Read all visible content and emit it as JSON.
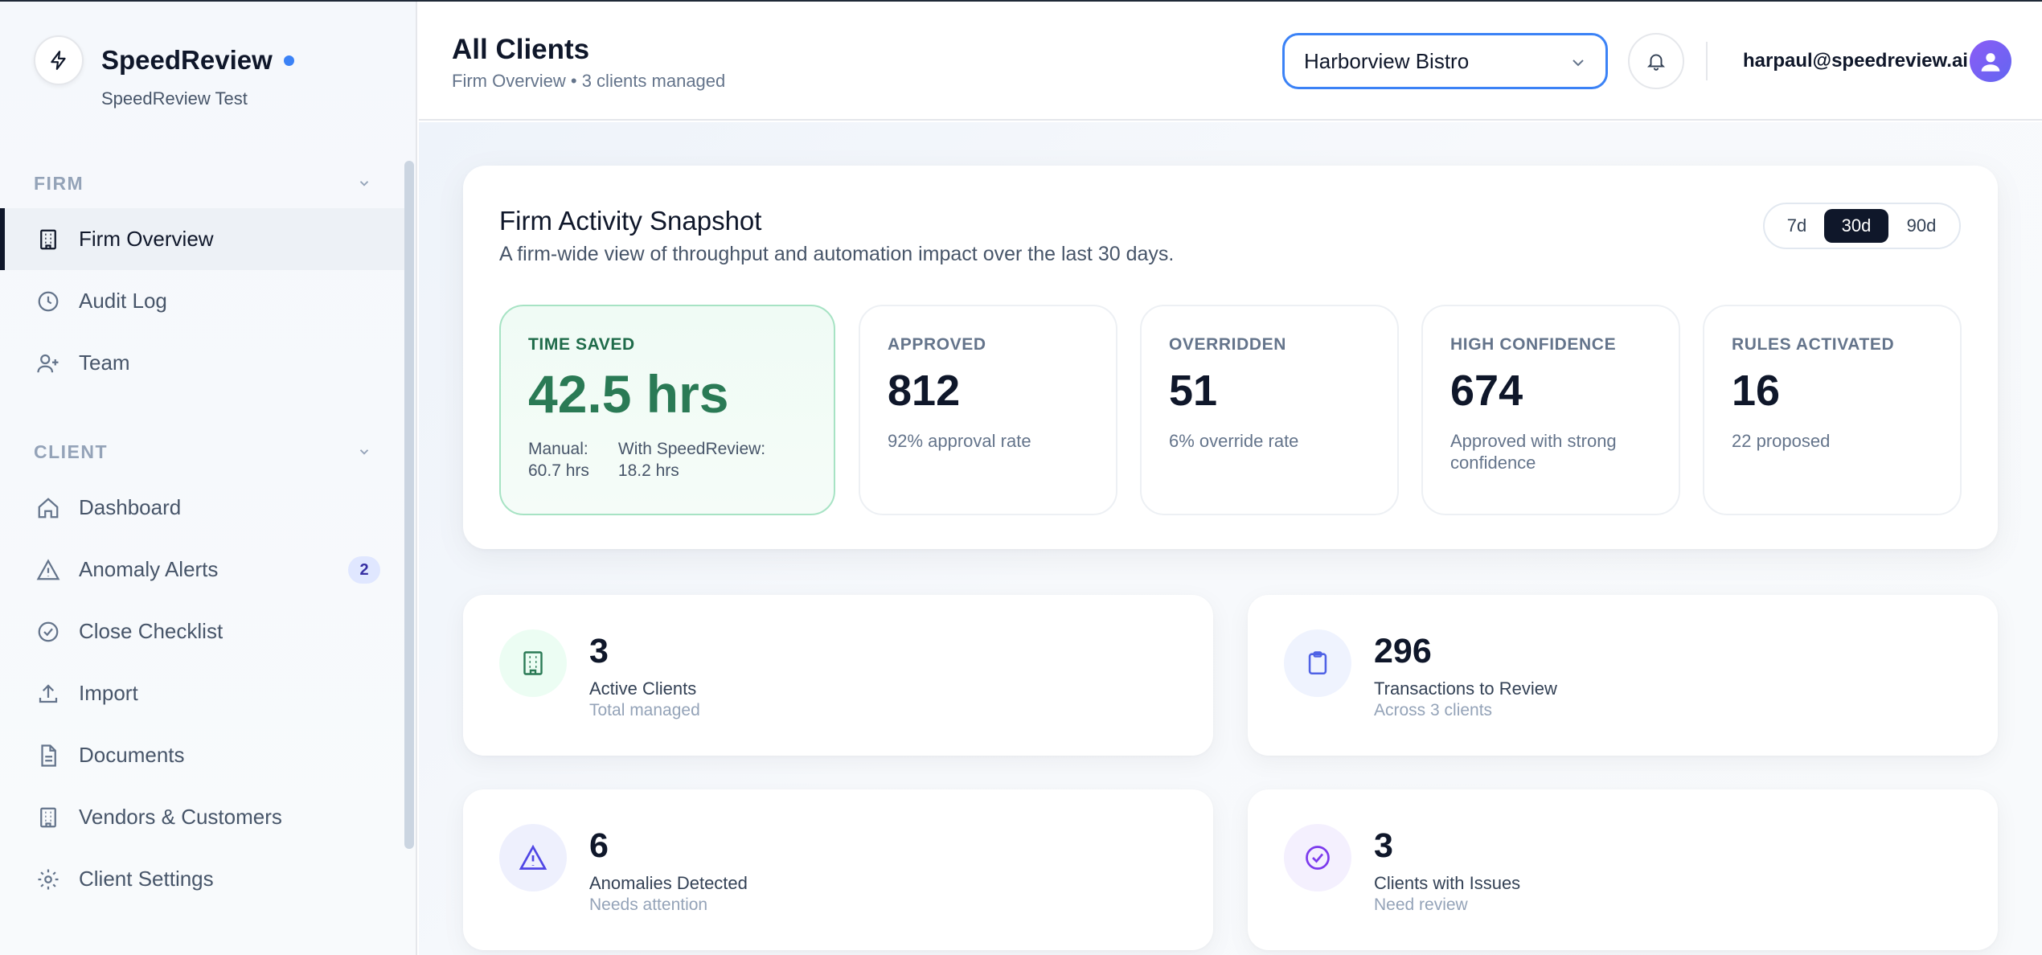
{
  "brand": {
    "name": "SpeedReview",
    "subtitle": "SpeedReview Test"
  },
  "sidebar": {
    "sections": [
      {
        "label": "FIRM",
        "items": [
          {
            "label": "Firm Overview",
            "icon": "building-icon",
            "active": true
          },
          {
            "label": "Audit Log",
            "icon": "clock-icon"
          },
          {
            "label": "Team",
            "icon": "user-plus-icon"
          }
        ]
      },
      {
        "label": "CLIENT",
        "items": [
          {
            "label": "Dashboard",
            "icon": "home-icon"
          },
          {
            "label": "Anomaly Alerts",
            "icon": "alert-triangle-icon",
            "badge": "2"
          },
          {
            "label": "Close Checklist",
            "icon": "check-circle-icon"
          },
          {
            "label": "Import",
            "icon": "upload-icon"
          },
          {
            "label": "Documents",
            "icon": "file-icon"
          },
          {
            "label": "Vendors & Customers",
            "icon": "building-icon"
          },
          {
            "label": "Client Settings",
            "icon": "gear-icon"
          }
        ]
      }
    ]
  },
  "header": {
    "title": "All Clients",
    "subtitle": "Firm Overview • 3 clients managed",
    "client_select": {
      "value": "Harborview Bistro"
    },
    "user_email": "harpaul@speedreview.ai"
  },
  "snapshot": {
    "title": "Firm Activity Snapshot",
    "subtitle": "A firm-wide view of throughput and automation impact over the last 30 days.",
    "ranges": [
      "7d",
      "30d",
      "90d"
    ],
    "active_range": "30d",
    "time_saved": {
      "label": "TIME SAVED",
      "value": "42.5 hrs",
      "manual_label": "Manual:",
      "manual_value": "60.7 hrs",
      "with_label": "With SpeedReview:",
      "with_value": "18.2 hrs"
    },
    "metrics": [
      {
        "label": "APPROVED",
        "value": "812",
        "note": "92% approval rate"
      },
      {
        "label": "OVERRIDDEN",
        "value": "51",
        "note": "6% override rate"
      },
      {
        "label": "HIGH CONFIDENCE",
        "value": "674",
        "note": "Approved with strong confidence"
      },
      {
        "label": "RULES ACTIVATED",
        "value": "16",
        "note": "22 proposed"
      }
    ]
  },
  "stats": [
    {
      "value": "3",
      "label": "Active Clients",
      "sub": "Total managed",
      "icon": "building-icon"
    },
    {
      "value": "296",
      "label": "Transactions to Review",
      "sub": "Across 3 clients",
      "icon": "clipboard-icon"
    },
    {
      "value": "6",
      "label": "Anomalies Detected",
      "sub": "Needs attention",
      "icon": "alert-triangle-icon"
    },
    {
      "value": "3",
      "label": "Clients with Issues",
      "sub": "Need review",
      "icon": "check-circle-icon"
    }
  ],
  "colors": {
    "accent": "#3b82f6",
    "green": "#2a7a55",
    "dark": "#0f172a",
    "indigo": "#4f46e5",
    "purple": "#7c3aed"
  }
}
